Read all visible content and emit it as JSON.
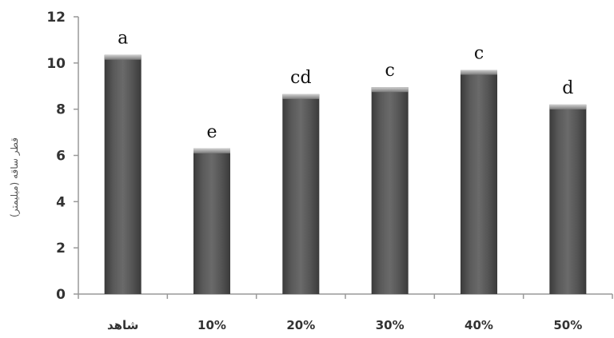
{
  "chart_data": {
    "type": "bar",
    "title": "",
    "xlabel": "",
    "ylabel": "قطر ساقه (میلیمتر)",
    "categories": [
      "شاهد",
      "10%",
      "20%",
      "30%",
      "40%",
      "50%"
    ],
    "values": [
      10.35,
      6.3,
      8.65,
      8.95,
      9.7,
      8.2
    ],
    "significance_letters": [
      "a",
      "e",
      "cd",
      "c",
      "c",
      "d"
    ],
    "ylim": [
      0,
      12
    ],
    "yticks": [
      0,
      2,
      4,
      6,
      8,
      10,
      12
    ],
    "grid": false,
    "legend": "none",
    "colors": {
      "bar_dark": "#3f3f3f",
      "bar_mid": "#8a8a8a",
      "bar_light": "#b9b9b9",
      "axis": "#999999"
    }
  }
}
